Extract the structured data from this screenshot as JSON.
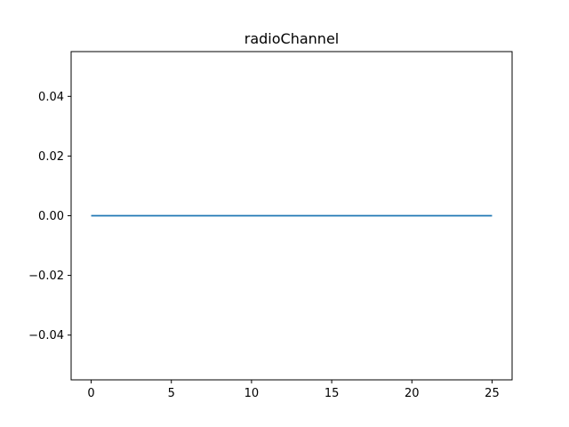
{
  "chart_data": {
    "type": "line",
    "title": "radioChannel",
    "xlabel": "",
    "ylabel": "",
    "xlim": [
      -1.25,
      26.25
    ],
    "ylim": [
      -0.055,
      0.055
    ],
    "x_ticks": [
      0,
      5,
      10,
      15,
      20,
      25
    ],
    "x_tick_labels": [
      "0",
      "5",
      "10",
      "15",
      "20",
      "25"
    ],
    "y_ticks": [
      -0.04,
      -0.02,
      0.0,
      0.02,
      0.04
    ],
    "y_tick_labels": [
      "−0.04",
      "−0.02",
      "0.00",
      "0.02",
      "0.04"
    ],
    "grid": false,
    "series": [
      {
        "color": "#1f77b4",
        "x": [
          0,
          25
        ],
        "y": [
          0,
          0
        ]
      }
    ]
  }
}
